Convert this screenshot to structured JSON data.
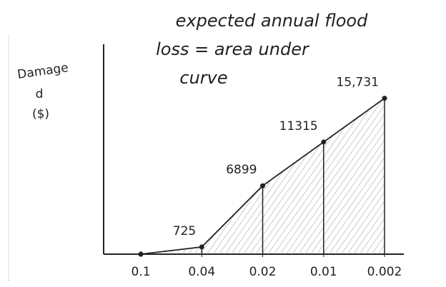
{
  "chart_data": {
    "type": "area",
    "title": [
      "expected annual flood",
      "loss = area under",
      "curve"
    ],
    "y_label": [
      "Damage",
      "d",
      "($)"
    ],
    "categories": [
      "0.1",
      "0.04",
      "0.02",
      "0.01",
      "0.002"
    ],
    "values": [
      0,
      725,
      6899,
      11315,
      15731
    ],
    "value_labels": [
      null,
      "725",
      "6899",
      "11315",
      "15,731"
    ],
    "ylim": [
      0,
      17000
    ],
    "color": "#222222"
  }
}
